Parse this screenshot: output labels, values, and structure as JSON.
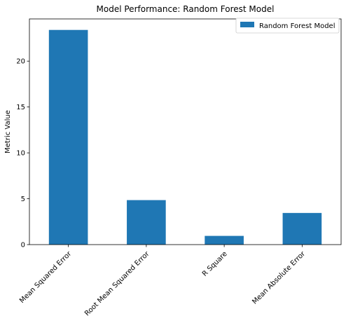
{
  "chart_data": {
    "type": "bar",
    "title": "Model Performance: Random Forest Model",
    "xlabel": "",
    "ylabel": "Metric Value",
    "categories": [
      "Mean Squared Error",
      "Root Mean Squared Error",
      "R Square",
      "Mean Absolute Error"
    ],
    "series": [
      {
        "name": "Random Forest Model",
        "values": [
          23.4,
          4.85,
          0.95,
          3.45
        ],
        "color": "#1f77b4"
      }
    ],
    "ylim": [
      0,
      24.6
    ],
    "yticks": [
      0,
      5,
      10,
      15,
      20
    ],
    "grid": false,
    "legend_position": "top-right"
  }
}
